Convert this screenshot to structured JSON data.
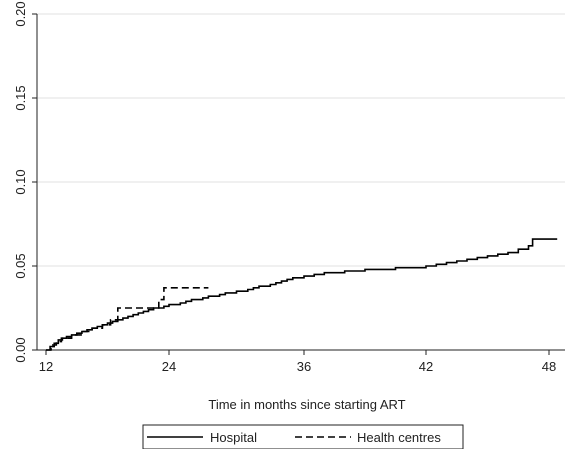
{
  "chart_data": {
    "type": "line",
    "xlabel": "Time in months since starting ART",
    "ylabel": "",
    "x_ticks": [
      12,
      24,
      36,
      42,
      48
    ],
    "x_tick_labels": [
      "12",
      "24",
      "36",
      "42",
      "48"
    ],
    "y_ticks": [
      0.0,
      0.05,
      0.1,
      0.15,
      0.2
    ],
    "y_tick_labels": [
      "0.00",
      "0.05",
      "0.10",
      "0.15",
      "0.20"
    ],
    "ylim": [
      0,
      0.2
    ],
    "grid": "horizontal",
    "legend_position": "bottom",
    "series": [
      {
        "name": "Hospital",
        "line_style": "solid",
        "color": "#000000",
        "step": true,
        "points": [
          [
            12.0,
            0.0
          ],
          [
            12.4,
            0.002
          ],
          [
            12.8,
            0.004
          ],
          [
            13.2,
            0.006
          ],
          [
            13.6,
            0.007
          ],
          [
            14.0,
            0.008
          ],
          [
            14.5,
            0.009
          ],
          [
            15.0,
            0.01
          ],
          [
            15.5,
            0.011
          ],
          [
            16.0,
            0.012
          ],
          [
            16.5,
            0.013
          ],
          [
            17.0,
            0.014
          ],
          [
            17.5,
            0.015
          ],
          [
            18.0,
            0.016
          ],
          [
            18.5,
            0.017
          ],
          [
            19.0,
            0.018
          ],
          [
            19.5,
            0.019
          ],
          [
            20.0,
            0.02
          ],
          [
            20.5,
            0.021
          ],
          [
            21.0,
            0.022
          ],
          [
            21.5,
            0.023
          ],
          [
            22.0,
            0.024
          ],
          [
            22.5,
            0.025
          ],
          [
            23.0,
            0.025
          ],
          [
            23.5,
            0.026
          ],
          [
            24.0,
            0.027
          ],
          [
            24.5,
            0.027
          ],
          [
            25.0,
            0.028
          ],
          [
            25.5,
            0.029
          ],
          [
            26.0,
            0.03
          ],
          [
            26.5,
            0.03
          ],
          [
            27.0,
            0.031
          ],
          [
            27.5,
            0.032
          ],
          [
            28.0,
            0.032
          ],
          [
            28.5,
            0.033
          ],
          [
            29.0,
            0.034
          ],
          [
            29.5,
            0.034
          ],
          [
            30.0,
            0.035
          ],
          [
            30.5,
            0.035
          ],
          [
            31.0,
            0.036
          ],
          [
            31.5,
            0.037
          ],
          [
            32.0,
            0.038
          ],
          [
            32.5,
            0.038
          ],
          [
            33.0,
            0.039
          ],
          [
            33.5,
            0.04
          ],
          [
            34.0,
            0.041
          ],
          [
            34.5,
            0.042
          ],
          [
            35.0,
            0.043
          ],
          [
            35.5,
            0.043
          ],
          [
            36.0,
            0.044
          ],
          [
            36.5,
            0.045
          ],
          [
            37.0,
            0.046
          ],
          [
            37.5,
            0.046
          ],
          [
            38.0,
            0.047
          ],
          [
            38.5,
            0.047
          ],
          [
            39.0,
            0.048
          ],
          [
            39.5,
            0.048
          ],
          [
            40.0,
            0.048
          ],
          [
            40.5,
            0.049
          ],
          [
            41.0,
            0.049
          ],
          [
            41.5,
            0.049
          ],
          [
            42.0,
            0.05
          ],
          [
            42.5,
            0.051
          ],
          [
            43.0,
            0.052
          ],
          [
            43.5,
            0.053
          ],
          [
            44.0,
            0.054
          ],
          [
            44.5,
            0.055
          ],
          [
            45.0,
            0.056
          ],
          [
            45.5,
            0.057
          ],
          [
            46.0,
            0.058
          ],
          [
            46.5,
            0.06
          ],
          [
            47.0,
            0.062
          ],
          [
            47.2,
            0.066
          ],
          [
            48.4,
            0.066
          ]
        ]
      },
      {
        "name": "Health centres",
        "line_style": "dashed",
        "color": "#000000",
        "step": true,
        "points": [
          [
            12.0,
            0.0
          ],
          [
            12.5,
            0.003
          ],
          [
            13.0,
            0.005
          ],
          [
            13.5,
            0.007
          ],
          [
            14.5,
            0.009
          ],
          [
            15.5,
            0.011
          ],
          [
            16.5,
            0.013
          ],
          [
            17.5,
            0.015
          ],
          [
            18.3,
            0.018
          ],
          [
            19.0,
            0.025
          ],
          [
            21.0,
            0.025
          ],
          [
            22.5,
            0.025
          ],
          [
            23.0,
            0.03
          ],
          [
            23.5,
            0.037
          ],
          [
            27.5,
            0.037
          ]
        ]
      }
    ]
  }
}
